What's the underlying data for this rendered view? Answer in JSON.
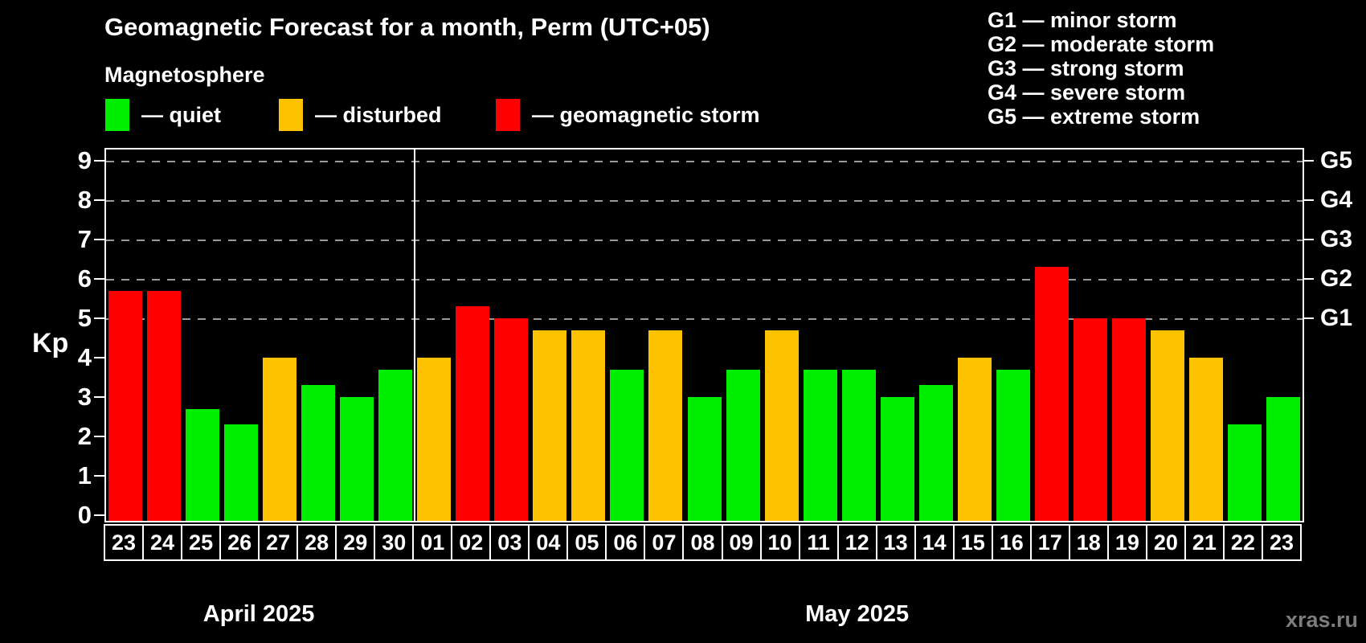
{
  "title": "Geomagnetic Forecast for a month, Perm (UTC+05)",
  "subtitle": "Magnetosphere",
  "legend": [
    {
      "key": "quiet",
      "label": "— quiet",
      "color": "#00ee00"
    },
    {
      "key": "disturbed",
      "label": "— disturbed",
      "color": "#ffc200"
    },
    {
      "key": "storm",
      "label": "— geomagnetic storm",
      "color": "#ff0000"
    }
  ],
  "g_scale_legend": [
    "G1 — minor storm",
    "G2 — moderate storm",
    "G3 — strong storm",
    "G4 — severe storm",
    "G5 — extreme storm"
  ],
  "watermark": "xras.ru",
  "axis": {
    "y_label": "Kp",
    "y_ticks": [
      0,
      1,
      2,
      3,
      4,
      5,
      6,
      7,
      8,
      9
    ],
    "right_levels": [
      {
        "kp": 5,
        "label": "G1"
      },
      {
        "kp": 6,
        "label": "G2"
      },
      {
        "kp": 7,
        "label": "G3"
      },
      {
        "kp": 8,
        "label": "G4"
      },
      {
        "kp": 9,
        "label": "G5"
      }
    ]
  },
  "colors": {
    "quiet": "#00ee00",
    "disturbed": "#ffc200",
    "storm": "#ff0000",
    "grid": "#9a9a9a",
    "axis": "#ffffff",
    "background": "#000000",
    "watermark": "#7d7d7d"
  },
  "chart_data": {
    "type": "bar",
    "title": "Geomagnetic Forecast for a month, Perm (UTC+05)",
    "ylabel": "Kp",
    "ylim": [
      0,
      9.4
    ],
    "grid": "dashed horizontal at Kp 5-9 only",
    "legend_position": "top-left",
    "gridlines_at": [
      5,
      6,
      7,
      8,
      9
    ],
    "groups": [
      {
        "month": "April 2025",
        "points": [
          {
            "day": "23",
            "kp": 5.7,
            "status": "storm"
          },
          {
            "day": "24",
            "kp": 5.7,
            "status": "storm"
          },
          {
            "day": "25",
            "kp": 2.7,
            "status": "quiet"
          },
          {
            "day": "26",
            "kp": 2.3,
            "status": "quiet"
          },
          {
            "day": "27",
            "kp": 4.0,
            "status": "disturbed"
          },
          {
            "day": "28",
            "kp": 3.3,
            "status": "quiet"
          },
          {
            "day": "29",
            "kp": 3.0,
            "status": "quiet"
          },
          {
            "day": "30",
            "kp": 3.7,
            "status": "quiet"
          }
        ]
      },
      {
        "month": "May 2025",
        "points": [
          {
            "day": "01",
            "kp": 4.0,
            "status": "disturbed"
          },
          {
            "day": "02",
            "kp": 5.3,
            "status": "storm"
          },
          {
            "day": "03",
            "kp": 5.0,
            "status": "storm"
          },
          {
            "day": "04",
            "kp": 4.7,
            "status": "disturbed"
          },
          {
            "day": "05",
            "kp": 4.7,
            "status": "disturbed"
          },
          {
            "day": "06",
            "kp": 3.7,
            "status": "quiet"
          },
          {
            "day": "07",
            "kp": 4.7,
            "status": "disturbed"
          },
          {
            "day": "08",
            "kp": 3.0,
            "status": "quiet"
          },
          {
            "day": "09",
            "kp": 3.7,
            "status": "quiet"
          },
          {
            "day": "10",
            "kp": 4.7,
            "status": "disturbed"
          },
          {
            "day": "11",
            "kp": 3.7,
            "status": "quiet"
          },
          {
            "day": "12",
            "kp": 3.7,
            "status": "quiet"
          },
          {
            "day": "13",
            "kp": 3.0,
            "status": "quiet"
          },
          {
            "day": "14",
            "kp": 3.3,
            "status": "quiet"
          },
          {
            "day": "15",
            "kp": 4.0,
            "status": "disturbed"
          },
          {
            "day": "16",
            "kp": 3.7,
            "status": "quiet"
          },
          {
            "day": "17",
            "kp": 6.3,
            "status": "storm"
          },
          {
            "day": "18",
            "kp": 5.0,
            "status": "storm"
          },
          {
            "day": "19",
            "kp": 5.0,
            "status": "storm"
          },
          {
            "day": "20",
            "kp": 4.7,
            "status": "disturbed"
          },
          {
            "day": "21",
            "kp": 4.0,
            "status": "disturbed"
          },
          {
            "day": "22",
            "kp": 2.3,
            "status": "quiet"
          },
          {
            "day": "23",
            "kp": 3.0,
            "status": "quiet"
          }
        ]
      }
    ]
  }
}
